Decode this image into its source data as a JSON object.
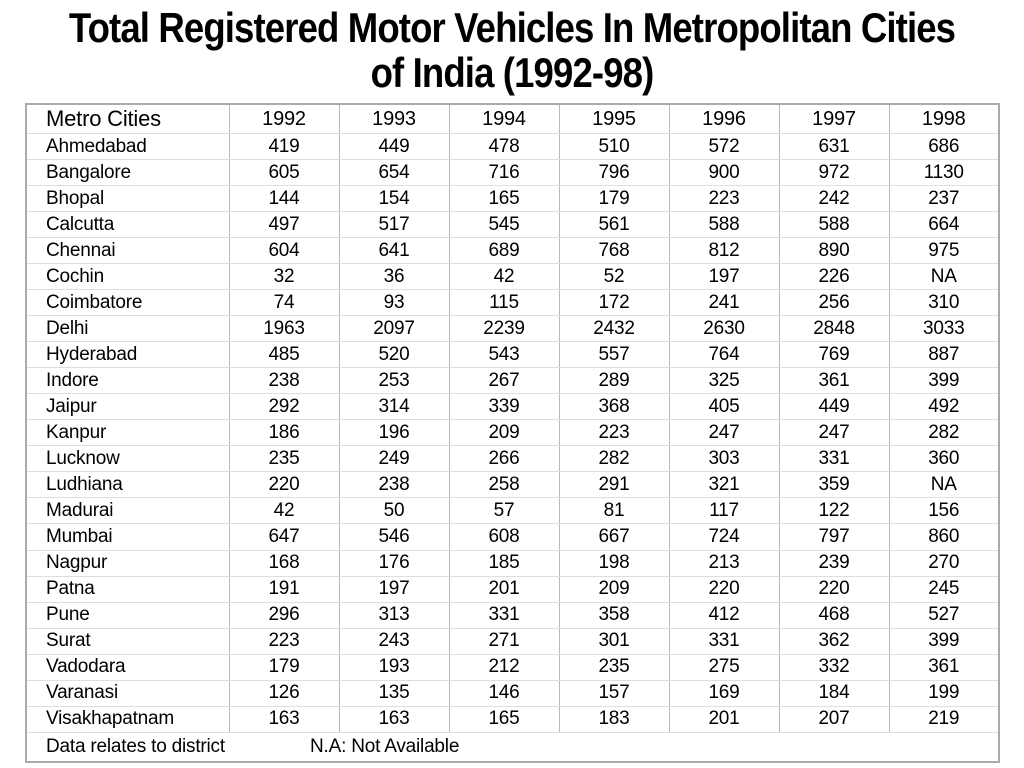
{
  "title": {
    "full": "Total Registered Motor Vehicles In Metropolitan Cities of India (1992-98)"
  },
  "colors": {
    "background": "#ffffff",
    "text": "#000000",
    "outer_border": "#ababab",
    "vertical_grid": "#b8b8b8",
    "horizontal_grid": "#dedede"
  },
  "chart_data": {
    "type": "table",
    "title": "Total Registered Motor Vehicles In Metropolitan Cities of India (1992-98)",
    "title_lines": [
      "Total Registered Motor Vehicles In Metropolitan Cities",
      "of India (1992-98)"
    ],
    "columns": [
      "Metro Cities",
      "1992",
      "1993",
      "1994",
      "1995",
      "1996",
      "1997",
      "1998"
    ],
    "rows": [
      [
        "Ahmedabad",
        419,
        449,
        478,
        510,
        572,
        631,
        686
      ],
      [
        "Bangalore",
        605,
        654,
        716,
        796,
        900,
        972,
        1130
      ],
      [
        "Bhopal",
        144,
        154,
        165,
        179,
        223,
        242,
        237
      ],
      [
        "Calcutta",
        497,
        517,
        545,
        561,
        588,
        588,
        664
      ],
      [
        "Chennai",
        604,
        641,
        689,
        768,
        812,
        890,
        975
      ],
      [
        "Cochin",
        32,
        36,
        42,
        52,
        197,
        226,
        "NA"
      ],
      [
        "Coimbatore",
        74,
        93,
        115,
        172,
        241,
        256,
        310
      ],
      [
        "Delhi",
        1963,
        2097,
        2239,
        2432,
        2630,
        2848,
        3033
      ],
      [
        "Hyderabad",
        485,
        520,
        543,
        557,
        764,
        769,
        887
      ],
      [
        "Indore",
        238,
        253,
        267,
        289,
        325,
        361,
        399
      ],
      [
        "Jaipur",
        292,
        314,
        339,
        368,
        405,
        449,
        492
      ],
      [
        "Kanpur",
        186,
        196,
        209,
        223,
        247,
        247,
        282
      ],
      [
        "Lucknow",
        235,
        249,
        266,
        282,
        303,
        331,
        360
      ],
      [
        "Ludhiana",
        220,
        238,
        258,
        291,
        321,
        359,
        "NA"
      ],
      [
        "Madurai",
        42,
        50,
        57,
        81,
        117,
        122,
        156
      ],
      [
        "Mumbai",
        647,
        546,
        608,
        667,
        724,
        797,
        860
      ],
      [
        "Nagpur",
        168,
        176,
        185,
        198,
        213,
        239,
        270
      ],
      [
        "Patna",
        191,
        197,
        201,
        209,
        220,
        220,
        245
      ],
      [
        "Pune",
        296,
        313,
        331,
        358,
        412,
        468,
        527
      ],
      [
        "Surat",
        223,
        243,
        271,
        301,
        331,
        362,
        399
      ],
      [
        "Vadodara",
        179,
        193,
        212,
        235,
        275,
        332,
        361
      ],
      [
        "Varanasi",
        126,
        135,
        146,
        157,
        169,
        184,
        199
      ],
      [
        "Visakhapatnam",
        163,
        163,
        165,
        183,
        201,
        207,
        219
      ]
    ],
    "notes": [
      "Data relates to district",
      "N.A: Not Available"
    ]
  }
}
